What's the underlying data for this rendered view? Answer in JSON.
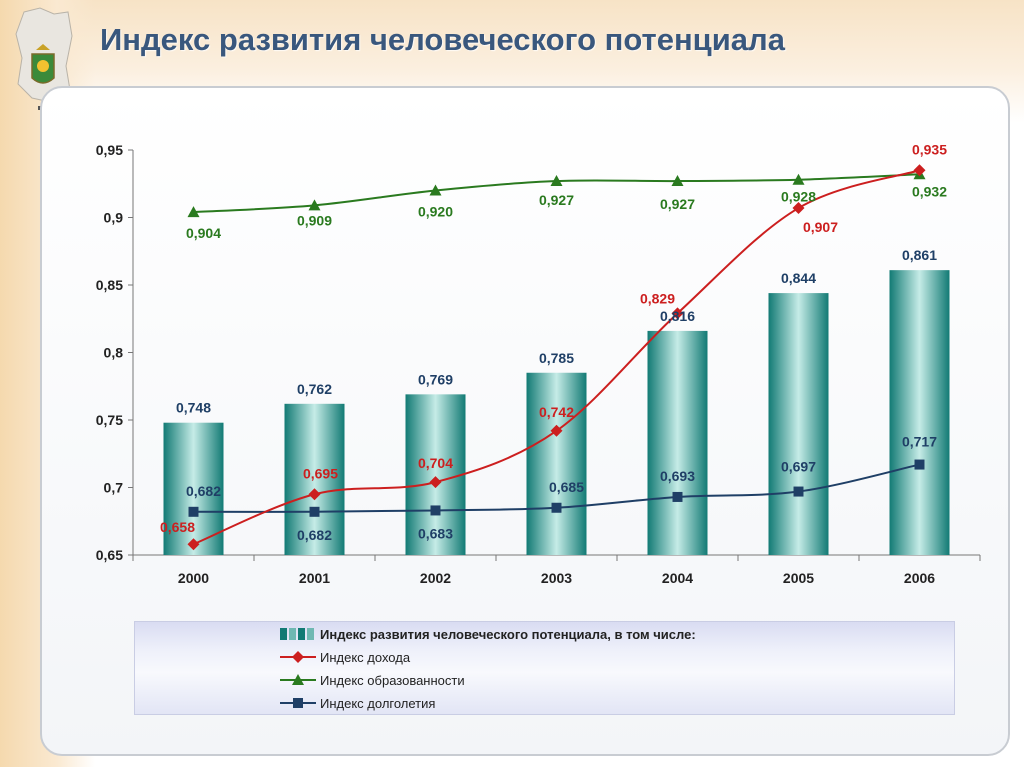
{
  "page": {
    "title": "Индекс развития человеческого потенциала"
  },
  "colors": {
    "title": "#39577d",
    "bar_dark": "#127a74",
    "bar_light": "#c6ece7",
    "income": "#cc1f1f",
    "education": "#2a7a1f",
    "longevity": "#1f3f66"
  },
  "legend": {
    "items": [
      {
        "key": "hdi",
        "label": "Индекс развития человеческого потенциала, в том числе:",
        "marker": "bar"
      },
      {
        "key": "income",
        "label": "Индекс дохода",
        "marker": "diamond"
      },
      {
        "key": "education",
        "label": "Индекс образованности",
        "marker": "triangle"
      },
      {
        "key": "longevity",
        "label": "Индекс долголетия",
        "marker": "square"
      }
    ]
  },
  "chart_data": {
    "type": "bar+line",
    "categories": [
      "2000",
      "2001",
      "2002",
      "2003",
      "2004",
      "2005",
      "2006"
    ],
    "ylim": [
      0.65,
      0.95
    ],
    "yticks": [
      "0,65",
      "0,7",
      "0,75",
      "0,8",
      "0,85",
      "0,9",
      "0,95"
    ],
    "ytick_values": [
      0.65,
      0.7,
      0.75,
      0.8,
      0.85,
      0.9,
      0.95
    ],
    "grid": false,
    "legend_position": "bottom",
    "series": [
      {
        "key": "hdi",
        "name": "Индекс развития человеческого потенциала, в том числе:",
        "type": "bar",
        "values": [
          0.748,
          0.762,
          0.769,
          0.785,
          0.816,
          0.844,
          0.861
        ],
        "labels": [
          "0,748",
          "0,762",
          "0,769",
          "0,785",
          "0,816",
          "0,844",
          "0,861"
        ]
      },
      {
        "key": "income",
        "name": "Индекс дохода",
        "type": "line",
        "marker": "diamond",
        "values": [
          0.658,
          0.695,
          0.704,
          0.742,
          0.829,
          0.907,
          0.935
        ],
        "labels": [
          "0,658",
          "0,695",
          "0,704",
          "0,742",
          "0,829",
          "0,907",
          "0,935"
        ]
      },
      {
        "key": "education",
        "name": "Индекс образованности",
        "type": "line",
        "marker": "triangle",
        "values": [
          0.904,
          0.909,
          0.92,
          0.927,
          0.927,
          0.928,
          0.932
        ],
        "labels": [
          "0,904",
          "0,909",
          "0,920",
          "0,927",
          "0,927",
          "0,928",
          "0,932"
        ]
      },
      {
        "key": "longevity",
        "name": "Индекс долголетия",
        "type": "line",
        "marker": "square",
        "values": [
          0.682,
          0.682,
          0.683,
          0.685,
          0.693,
          0.697,
          0.717
        ],
        "labels": [
          "0,682",
          "0,682",
          "0,683",
          "0,685",
          "0,693",
          "0,697",
          "0,717"
        ]
      }
    ]
  }
}
